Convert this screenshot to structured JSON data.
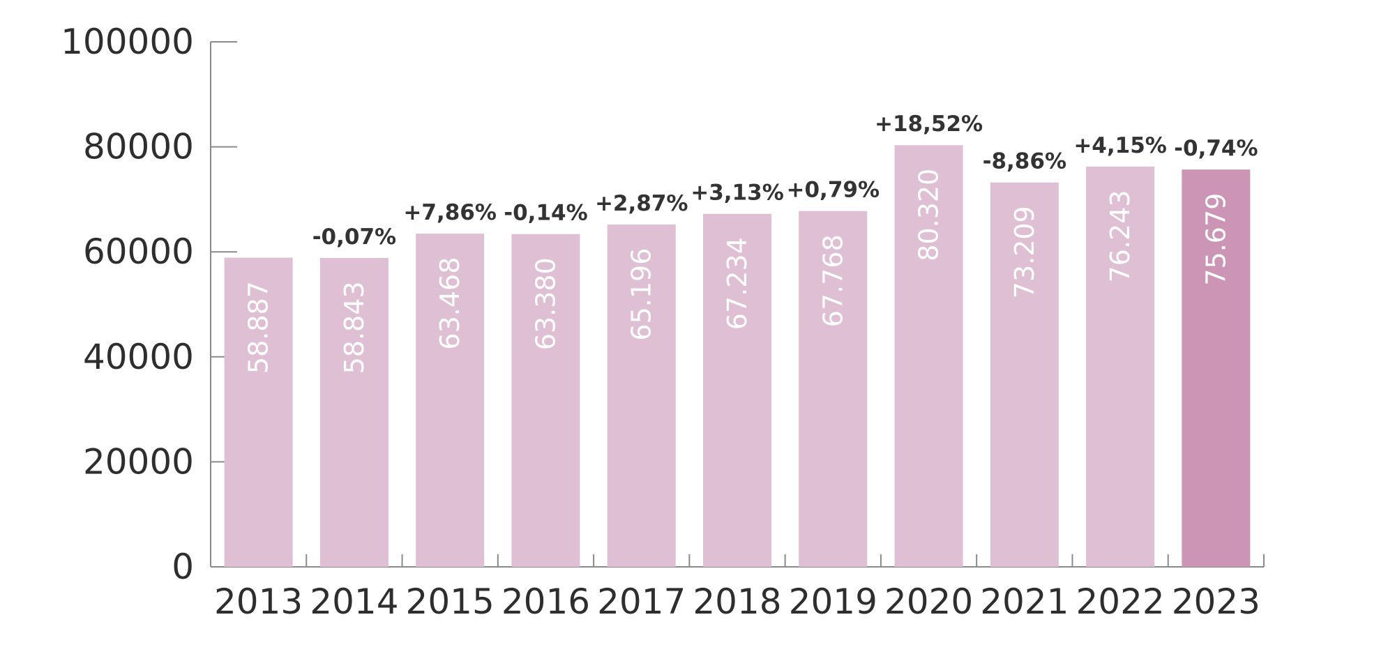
{
  "chart_data": {
    "type": "bar",
    "categories": [
      "2013",
      "2014",
      "2015",
      "2016",
      "2017",
      "2018",
      "2019",
      "2020",
      "2021",
      "2022",
      "2023"
    ],
    "values": [
      58887,
      58843,
      63468,
      63380,
      65196,
      67234,
      67768,
      80320,
      73209,
      76243,
      75679
    ],
    "value_labels": [
      "58.887",
      "58.843",
      "63.468",
      "63.380",
      "65.196",
      "67.234",
      "67.768",
      "80.320",
      "73.209",
      "76.243",
      "75.679"
    ],
    "change_labels": [
      "",
      "-0,07%",
      "+7,86%",
      "-0,14%",
      "+2,87%",
      "+3,13%",
      "+0,79%",
      "+18,52%",
      "-8,86%",
      "+4,15%",
      "-0,74%"
    ],
    "y_ticks": [
      "0",
      "20000",
      "40000",
      "60000",
      "80000",
      "100000"
    ],
    "ylim": [
      0,
      100000
    ],
    "highlight_index": 10,
    "bar_color": "#dfbfd4",
    "highlight_color": "#cc95b6",
    "grid": false,
    "legend": "none"
  }
}
